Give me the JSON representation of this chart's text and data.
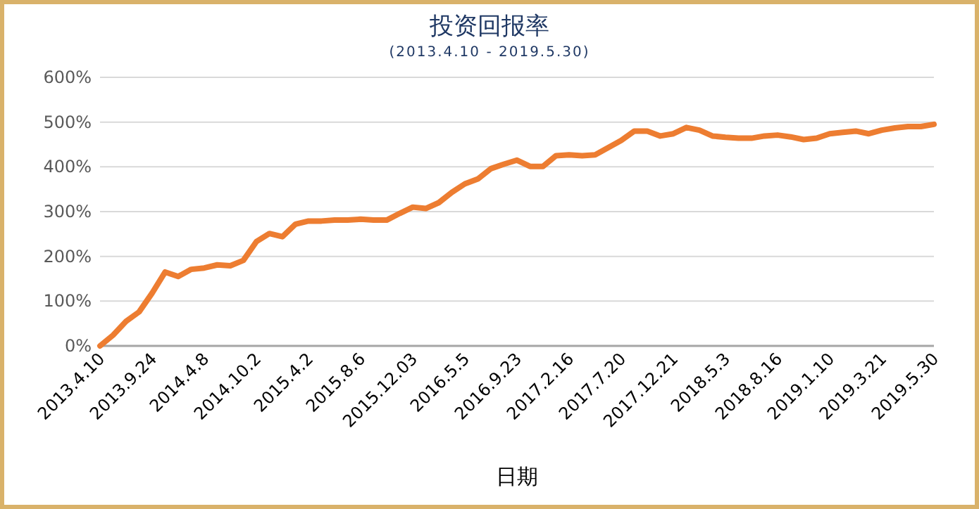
{
  "chart_data": {
    "type": "line",
    "title": "投资回报率",
    "subtitle": "(2013.4.10 - 2019.5.30)",
    "xlabel": "日期",
    "categories": [
      "2013.4.10",
      null,
      null,
      null,
      "2013.9.24",
      null,
      null,
      null,
      "2014.4.8",
      null,
      null,
      null,
      "2014.10.2",
      null,
      null,
      null,
      "2015.4.2",
      null,
      null,
      null,
      "2015.8.6",
      null,
      null,
      null,
      "2015.12.03",
      null,
      null,
      null,
      "2016.5.5",
      null,
      null,
      null,
      "2016.9.23",
      null,
      null,
      null,
      "2017.2.16",
      null,
      null,
      null,
      "2017.7.20",
      null,
      null,
      null,
      "2017.12.21",
      null,
      null,
      null,
      "2018.5.3",
      null,
      null,
      null,
      "2018.8.16",
      null,
      null,
      null,
      "2019.1.10",
      null,
      null,
      null,
      "2019.3.21",
      null,
      null,
      null,
      "2019.5.30"
    ],
    "series": [
      {
        "color": "#ed7d31",
        "values": [
          0,
          24,
          55,
          76,
          118,
          165,
          155,
          171,
          174,
          181,
          179,
          191,
          233,
          251,
          244,
          272,
          279,
          279,
          281,
          281,
          283,
          281,
          281,
          296,
          310,
          307,
          320,
          343,
          362,
          373,
          396,
          406,
          415,
          401,
          401,
          425,
          427,
          425,
          427,
          443,
          459,
          480,
          480,
          469,
          474,
          488,
          482,
          469,
          466,
          464,
          464,
          469,
          471,
          467,
          461,
          464,
          474,
          477,
          480,
          474,
          482,
          487,
          490,
          490,
          495
        ]
      }
    ],
    "ylim": [
      0,
      600
    ],
    "yticks": [
      {
        "value": 0,
        "label": "0%"
      },
      {
        "value": 100,
        "label": "100%"
      },
      {
        "value": 200,
        "label": "200%"
      },
      {
        "value": 300,
        "label": "300%"
      },
      {
        "value": 400,
        "label": "400%"
      },
      {
        "value": 500,
        "label": "500%"
      },
      {
        "value": 600,
        "label": "600%"
      }
    ],
    "grid": "y",
    "marker": "none",
    "line_style": "solid"
  }
}
